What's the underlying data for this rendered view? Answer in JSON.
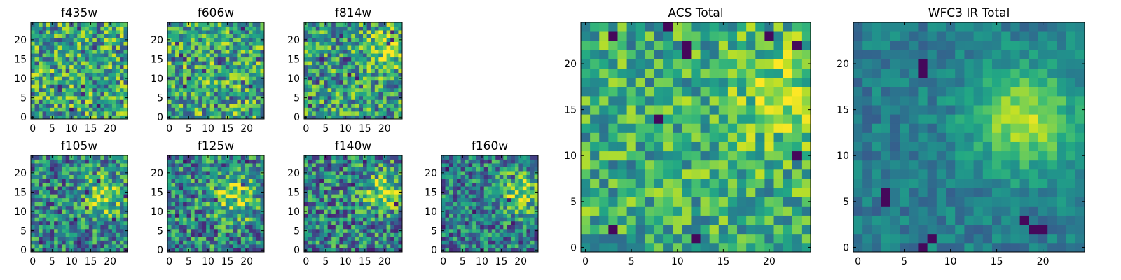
{
  "chart_data": [
    {
      "type": "heatmap",
      "title": "f435w",
      "size": 25,
      "xticks": [
        "0",
        "5",
        "10",
        "15",
        "20"
      ],
      "yticks": [
        "0",
        "5",
        "10",
        "15",
        "20"
      ],
      "xlim": [
        -0.5,
        24.5
      ],
      "ylim": [
        -0.5,
        24.5
      ],
      "colormap": "viridis",
      "value_range": [
        0,
        1
      ],
      "blob": null,
      "base": 0.58,
      "noise": 0.42,
      "pixel_blocks": 1,
      "seed": 11,
      "dark_pixels": []
    },
    {
      "type": "heatmap",
      "title": "f606w",
      "size": 25,
      "xticks": [
        "0",
        "5",
        "10",
        "15",
        "20"
      ],
      "yticks": [
        "0",
        "5",
        "10",
        "15",
        "20"
      ],
      "xlim": [
        -0.5,
        24.5
      ],
      "ylim": [
        -0.5,
        24.5
      ],
      "colormap": "viridis",
      "value_range": [
        0,
        1
      ],
      "blob": null,
      "base": 0.6,
      "noise": 0.4,
      "pixel_blocks": 1,
      "seed": 23,
      "dark_pixels": []
    },
    {
      "type": "heatmap",
      "title": "f814w",
      "size": 25,
      "xticks": [
        "0",
        "5",
        "10",
        "15",
        "20"
      ],
      "yticks": [
        "0",
        "5",
        "10",
        "15",
        "20"
      ],
      "xlim": [
        -0.5,
        24.5
      ],
      "ylim": [
        -0.5,
        24.5
      ],
      "colormap": "viridis",
      "value_range": [
        0,
        1
      ],
      "blob": {
        "x": 21,
        "y": 18,
        "sigma": 3.5,
        "amp": 0.3
      },
      "base": 0.55,
      "noise": 0.4,
      "pixel_blocks": 1,
      "seed": 37,
      "dark_pixels": []
    },
    {
      "type": "heatmap",
      "title": "f105w",
      "size": 25,
      "xticks": [
        "0",
        "5",
        "10",
        "15",
        "20"
      ],
      "yticks": [
        "0",
        "5",
        "10",
        "15",
        "20"
      ],
      "xlim": [
        -0.5,
        24.5
      ],
      "ylim": [
        -0.5,
        24.5
      ],
      "colormap": "viridis",
      "value_range": [
        0,
        1
      ],
      "blob": {
        "x": 18,
        "y": 14,
        "sigma": 4,
        "amp": 0.35
      },
      "base": 0.45,
      "noise": 0.38,
      "pixel_blocks": 1,
      "seed": 41,
      "dark_pixels": []
    },
    {
      "type": "heatmap",
      "title": "f125w",
      "size": 25,
      "xticks": [
        "0",
        "5",
        "10",
        "15",
        "20"
      ],
      "yticks": [
        "0",
        "5",
        "10",
        "15",
        "20"
      ],
      "xlim": [
        -0.5,
        24.5
      ],
      "ylim": [
        -0.5,
        24.5
      ],
      "colormap": "viridis",
      "value_range": [
        0,
        1
      ],
      "blob": {
        "x": 17,
        "y": 14,
        "sigma": 4.5,
        "amp": 0.35
      },
      "base": 0.45,
      "noise": 0.4,
      "pixel_blocks": 1,
      "seed": 53,
      "dark_pixels": []
    },
    {
      "type": "heatmap",
      "title": "f140w",
      "size": 25,
      "xticks": [
        "0",
        "5",
        "10",
        "15",
        "20"
      ],
      "yticks": [
        "0",
        "5",
        "10",
        "15",
        "20"
      ],
      "xlim": [
        -0.5,
        24.5
      ],
      "ylim": [
        -0.5,
        24.5
      ],
      "colormap": "viridis",
      "value_range": [
        0,
        1
      ],
      "blob": {
        "x": 20,
        "y": 16,
        "sigma": 4,
        "amp": 0.35
      },
      "base": 0.45,
      "noise": 0.4,
      "pixel_blocks": 1,
      "seed": 67,
      "dark_pixels": []
    },
    {
      "type": "heatmap",
      "title": "f160w",
      "size": 25,
      "xticks": [
        "0",
        "5",
        "10",
        "15",
        "20"
      ],
      "yticks": [
        "0",
        "5",
        "10",
        "15",
        "20"
      ],
      "xlim": [
        -0.5,
        24.5
      ],
      "ylim": [
        -0.5,
        24.5
      ],
      "colormap": "viridis",
      "value_range": [
        0,
        1
      ],
      "blob": {
        "x": 20,
        "y": 15,
        "sigma": 4,
        "amp": 0.4
      },
      "base": 0.42,
      "noise": 0.36,
      "pixel_blocks": 1,
      "seed": 79,
      "dark_pixels": []
    },
    {
      "type": "heatmap",
      "title": "ACS Total",
      "size": 25,
      "xticks": [
        "0",
        "5",
        "10",
        "15",
        "20"
      ],
      "yticks": [
        "0",
        "5",
        "10",
        "15",
        "20"
      ],
      "xlim": [
        -0.5,
        24.5
      ],
      "ylim": [
        -0.5,
        24.5
      ],
      "colormap": "viridis",
      "value_range": [
        0,
        1
      ],
      "blob": {
        "x": 21,
        "y": 17,
        "sigma": 4,
        "amp": 0.2
      },
      "base": 0.62,
      "noise": 0.3,
      "pixel_blocks": 1,
      "seed": 97,
      "dark_pixels": [
        [
          3,
          23
        ],
        [
          9,
          24
        ],
        [
          11,
          21
        ],
        [
          11,
          22
        ],
        [
          20,
          23
        ],
        [
          23,
          22
        ],
        [
          8,
          14
        ],
        [
          23,
          10
        ],
        [
          3,
          2
        ],
        [
          12,
          1
        ]
      ]
    },
    {
      "type": "heatmap",
      "title": "WFC3 IR Total",
      "size": 25,
      "xticks": [
        "0",
        "5",
        "10",
        "15",
        "20"
      ],
      "yticks": [
        "0",
        "5",
        "10",
        "15",
        "20"
      ],
      "xlim": [
        -0.5,
        24.5
      ],
      "ylim": [
        -0.5,
        24.5
      ],
      "colormap": "viridis",
      "value_range": [
        0,
        1
      ],
      "blob": {
        "x": 18,
        "y": 14,
        "sigma": 4,
        "amp": 0.45
      },
      "base": 0.42,
      "noise": 0.14,
      "pixel_blocks": 1,
      "seed": 113,
      "dark_pixels": [
        [
          7,
          19
        ],
        [
          7,
          20
        ],
        [
          3,
          5
        ],
        [
          3,
          6
        ],
        [
          18,
          3
        ],
        [
          19,
          2
        ],
        [
          20,
          2
        ],
        [
          7,
          0
        ],
        [
          8,
          1
        ]
      ]
    }
  ]
}
